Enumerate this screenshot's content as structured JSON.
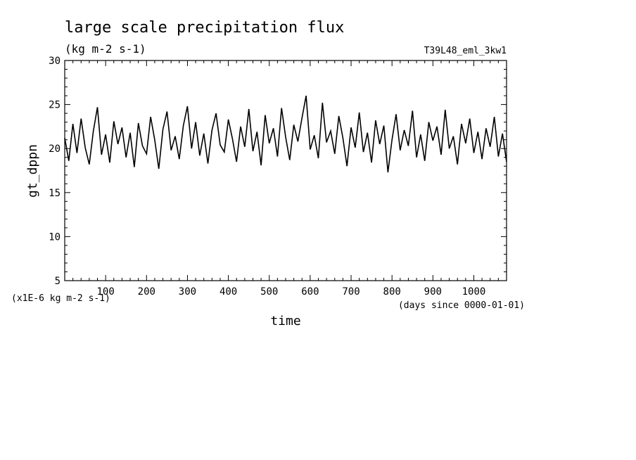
{
  "chart_data": {
    "type": "line",
    "title": "large scale precipitation flux",
    "subtitle": "(kg m-2 s-1)",
    "run_label": "T39L48_eml_3kw1",
    "xlabel": "time",
    "ylabel": "gt_dppn",
    "x_units": "(days since 0000-01-01)",
    "y_scale_note": "(x1E-6 kg m-2 s-1)",
    "xlim": [
      0,
      1080
    ],
    "ylim": [
      5,
      30
    ],
    "x_ticks": [
      100,
      200,
      300,
      400,
      500,
      600,
      700,
      800,
      900,
      1000
    ],
    "y_ticks": [
      5,
      10,
      15,
      20,
      25,
      30
    ],
    "grid": false,
    "series": [
      {
        "x": [
          0,
          10,
          20,
          30,
          40,
          50,
          60,
          70,
          80,
          90,
          100,
          110,
          120,
          130,
          140,
          150,
          160,
          170,
          180,
          190,
          200,
          210,
          220,
          230,
          240,
          250,
          260,
          270,
          280,
          290,
          300,
          310,
          320,
          330,
          340,
          350,
          360,
          370,
          380,
          390,
          400,
          410,
          420,
          430,
          440,
          450,
          460,
          470,
          480,
          490,
          500,
          510,
          520,
          530,
          540,
          550,
          560,
          570,
          580,
          590,
          600,
          610,
          620,
          630,
          640,
          650,
          660,
          670,
          680,
          690,
          700,
          710,
          720,
          730,
          740,
          750,
          760,
          770,
          780,
          790,
          800,
          810,
          820,
          830,
          840,
          850,
          860,
          870,
          880,
          890,
          900,
          910,
          920,
          930,
          940,
          950,
          960,
          970,
          980,
          990,
          1000,
          1010,
          1020,
          1030,
          1040,
          1050,
          1060,
          1070,
          1080
        ],
        "values": [
          21.2,
          18.6,
          22.8,
          19.5,
          23.4,
          20.1,
          18.2,
          22.0,
          24.7,
          19.3,
          21.6,
          18.4,
          23.1,
          20.5,
          22.4,
          19.0,
          21.8,
          17.9,
          22.9,
          20.3,
          19.4,
          23.6,
          21.0,
          17.7,
          22.2,
          24.2,
          19.8,
          21.4,
          18.8,
          22.6,
          24.8,
          20.0,
          23.0,
          19.2,
          21.7,
          18.3,
          22.1,
          24.0,
          20.4,
          19.6,
          23.3,
          21.1,
          18.5,
          22.5,
          20.2,
          24.5,
          19.7,
          21.9,
          18.1,
          23.8,
          20.6,
          22.3,
          19.1,
          24.6,
          21.3,
          18.7,
          22.7,
          20.8,
          23.5,
          26.0,
          19.9,
          21.5,
          18.9,
          25.2,
          20.7,
          22.0,
          19.4,
          23.7,
          21.2,
          18.0,
          22.4,
          20.1,
          24.1,
          19.6,
          21.8,
          18.4,
          23.2,
          20.5,
          22.6,
          17.3,
          21.0,
          23.9,
          19.8,
          22.1,
          20.3,
          24.3,
          19.0,
          21.6,
          18.6,
          23.0,
          20.9,
          22.5,
          19.3,
          24.4,
          20.0,
          21.4,
          18.2,
          22.8,
          20.6,
          23.4,
          19.5,
          21.9,
          18.8,
          22.3,
          20.2,
          23.6,
          19.1,
          21.7,
          18.5
        ]
      }
    ]
  }
}
